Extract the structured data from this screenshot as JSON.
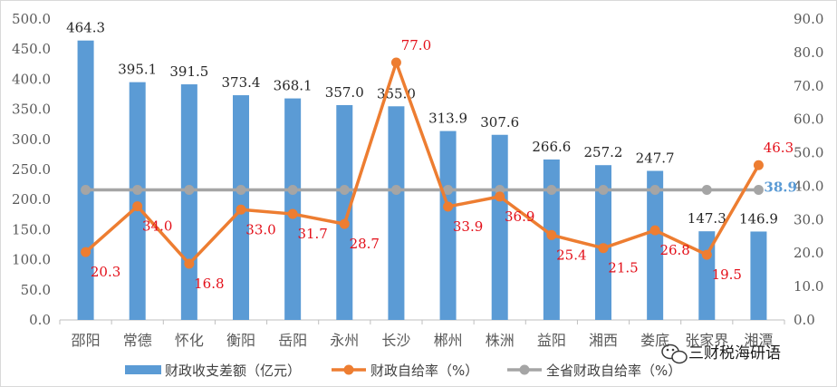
{
  "chart_data": {
    "type": "bar",
    "categories": [
      "邵阳",
      "常德",
      "怀化",
      "衡阳",
      "岳阳",
      "永州",
      "长沙",
      "郴州",
      "株洲",
      "益阳",
      "湘西",
      "娄底",
      "张家界",
      "湘潭"
    ],
    "series": [
      {
        "name": "财政收支差额（亿元）",
        "type": "bar",
        "axis": "left",
        "color": "#5b9bd5",
        "values": [
          464.3,
          395.1,
          391.5,
          373.4,
          368.1,
          357.0,
          355.0,
          313.9,
          307.6,
          266.6,
          257.2,
          247.7,
          147.3,
          146.9
        ],
        "labels": [
          "464.3",
          "395.1",
          "391.5",
          "373.4",
          "368.1",
          "357.0",
          "355.0",
          "313.9",
          "307.6",
          "266.6",
          "257.2",
          "247.7",
          "147.3",
          "146.9"
        ]
      },
      {
        "name": "财政自给率（%）",
        "type": "line",
        "axis": "right",
        "color": "#ed7d31",
        "values": [
          20.3,
          34.0,
          16.8,
          33.0,
          31.7,
          28.7,
          77.0,
          33.9,
          36.9,
          25.4,
          21.5,
          26.8,
          19.5,
          46.3
        ],
        "labels": [
          "20.3",
          "34.0",
          "16.8",
          "33.0",
          "31.7",
          "28.7",
          "77.0",
          "33.9",
          "36.9",
          "25.4",
          "21.5",
          "26.8",
          "19.5",
          "46.3"
        ],
        "label_color": "#e3101a"
      },
      {
        "name": "全省财政自给率（%）",
        "type": "line",
        "axis": "right",
        "color": "#a5a5a5",
        "values": [
          38.9,
          38.9,
          38.9,
          38.9,
          38.9,
          38.9,
          38.9,
          38.9,
          38.9,
          38.9,
          38.9,
          38.9,
          38.9,
          38.9
        ],
        "end_label": "38.9",
        "label_color": "#5b9bd5"
      }
    ],
    "y_left": {
      "ylim": [
        0,
        500
      ],
      "ticks": [
        "0.0",
        "50.0",
        "100.0",
        "150.0",
        "200.0",
        "250.0",
        "300.0",
        "350.0",
        "400.0",
        "450.0",
        "500.0"
      ]
    },
    "y_right": {
      "ylim": [
        0,
        90
      ],
      "ticks": [
        "0.0",
        "10.0",
        "20.0",
        "30.0",
        "40.0",
        "50.0",
        "60.0",
        "70.0",
        "80.0",
        "90.0"
      ]
    },
    "grid": false,
    "legend": {
      "placement": "bottom",
      "entries": [
        "财政收支差额（亿元）",
        "财政自给率（%）",
        "全省财政自给率（%）"
      ]
    },
    "title": "",
    "xlabel": "",
    "ylabel": ""
  },
  "watermark": {
    "text": "三财税海研语",
    "icon": "wechat-bubble-icon"
  }
}
